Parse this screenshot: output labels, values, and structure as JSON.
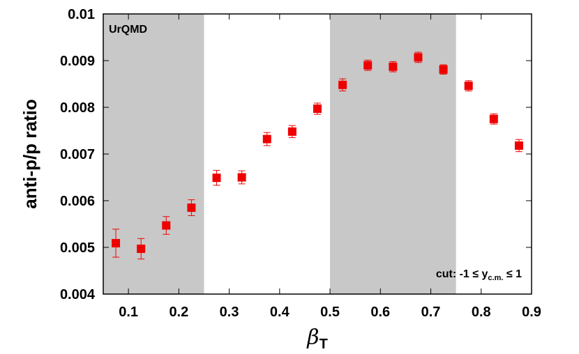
{
  "chart_data": {
    "type": "scatter",
    "ylabel": "anti-p/p ratio",
    "xlabel_symbol": "β",
    "xlabel_subscript": "T",
    "xlim": [
      0.05,
      0.9
    ],
    "ylim": [
      0.004,
      0.01
    ],
    "xticks": [
      "0.1",
      "0.2",
      "0.3",
      "0.4",
      "0.5",
      "0.6",
      "0.7",
      "0.8",
      "0.9"
    ],
    "yticks": [
      "0.004",
      "0.005",
      "0.006",
      "0.007",
      "0.008",
      "0.009",
      "0.01"
    ],
    "shaded_regions": [
      [
        0.05,
        0.25
      ],
      [
        0.5,
        0.75
      ]
    ],
    "shade_color": "#c8c8c8",
    "marker_color": "#ee0000",
    "annotations": {
      "model": "UrQMD",
      "cut_prefix": "cut: -1 ≤ y",
      "cut_sub": "c.m.",
      "cut_suffix": " ≤ 1"
    },
    "series": [
      {
        "x": [
          0.075,
          0.125,
          0.175,
          0.225,
          0.275,
          0.325,
          0.375,
          0.425,
          0.475,
          0.525,
          0.575,
          0.625,
          0.675,
          0.725,
          0.775,
          0.825,
          0.875
        ],
        "y": [
          0.00509,
          0.00497,
          0.00547,
          0.00585,
          0.00649,
          0.0065,
          0.00732,
          0.00748,
          0.00797,
          0.00848,
          0.0089,
          0.00887,
          0.00907,
          0.00881,
          0.00846,
          0.00775,
          0.00718
        ],
        "err": [
          0.0003,
          0.00022,
          0.00019,
          0.00017,
          0.00016,
          0.00014,
          0.00014,
          0.00013,
          0.00012,
          0.00013,
          0.00011,
          0.00011,
          0.00011,
          0.0001,
          0.00011,
          0.00011,
          0.00013
        ]
      }
    ]
  }
}
